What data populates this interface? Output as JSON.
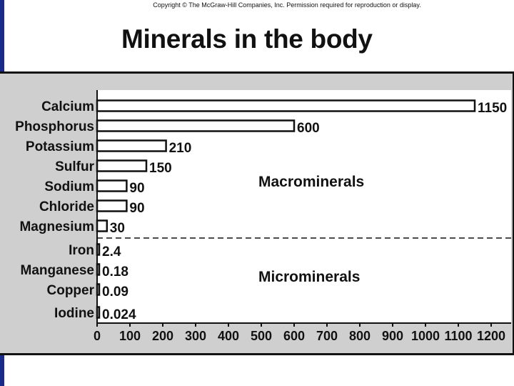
{
  "header": {
    "copyright": "Copyright © The McGraw-Hill Companies, Inc. Permission required for reproduction or display.",
    "title": "Minerals in the body"
  },
  "colors": {
    "frame": "#1a2a8a",
    "chart_bg": "#cfcfcf",
    "plot_bg": "#ffffff",
    "bar_fill": "#ffffff",
    "bar_stroke": "#111111"
  },
  "chart_data": {
    "type": "bar",
    "orientation": "horizontal",
    "categories": [
      "Calcium",
      "Phosphorus",
      "Potassium",
      "Sulfur",
      "Sodium",
      "Chloride",
      "Magnesium",
      "Iron",
      "Manganese",
      "Copper",
      "Iodine"
    ],
    "values": [
      1150,
      600,
      210,
      150,
      90,
      90,
      30,
      2.4,
      0.18,
      0.09,
      0.024
    ],
    "value_labels": [
      "1150",
      "600",
      "210",
      "150",
      "90",
      "90",
      "30",
      "2.4",
      "0.18",
      "0.09",
      "0.024"
    ],
    "xlim": [
      0,
      1200
    ],
    "xticks": [
      0,
      100,
      200,
      300,
      400,
      500,
      600,
      700,
      800,
      900,
      1000,
      1100,
      1200
    ],
    "regions": [
      {
        "label": "Macrominerals"
      },
      {
        "label": "Microminerals"
      }
    ],
    "divider": "dashed line between Magnesium and Iron",
    "grid": false,
    "legend": "none"
  }
}
